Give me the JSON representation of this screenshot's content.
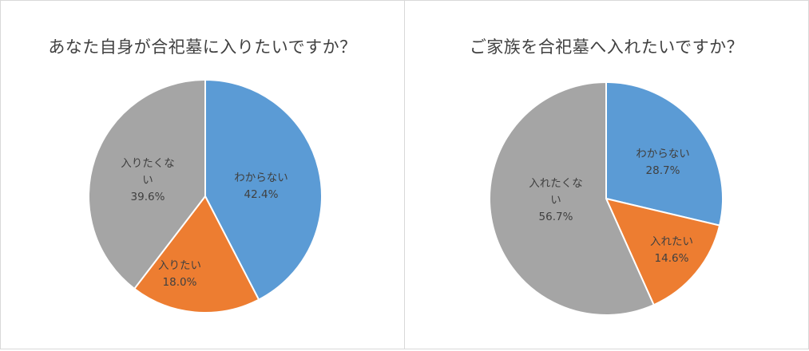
{
  "chart_data": [
    {
      "type": "pie",
      "title": "あなた自身が合祀墓に入りたいですか？",
      "slices": [
        {
          "label": "わからない",
          "value": 42.4,
          "value_text": "42.4%",
          "color": "#5b9bd5"
        },
        {
          "label": "入りたい",
          "value": 18.0,
          "value_text": "18.0%",
          "color": "#ed7d31"
        },
        {
          "label": "入りたくない",
          "value": 39.6,
          "value_text": "39.6%",
          "color": "#a5a5a5"
        }
      ]
    },
    {
      "type": "pie",
      "title": "ご家族を合祀墓へ入れたいですか？",
      "slices": [
        {
          "label": "わからない",
          "value": 28.7,
          "value_text": "28.7%",
          "color": "#5b9bd5"
        },
        {
          "label": "入れたい",
          "value": 14.6,
          "value_text": "14.6%",
          "color": "#ed7d31"
        },
        {
          "label": "入れたくない",
          "value": 56.7,
          "value_text": "56.7%",
          "color": "#a5a5a5"
        }
      ]
    }
  ]
}
